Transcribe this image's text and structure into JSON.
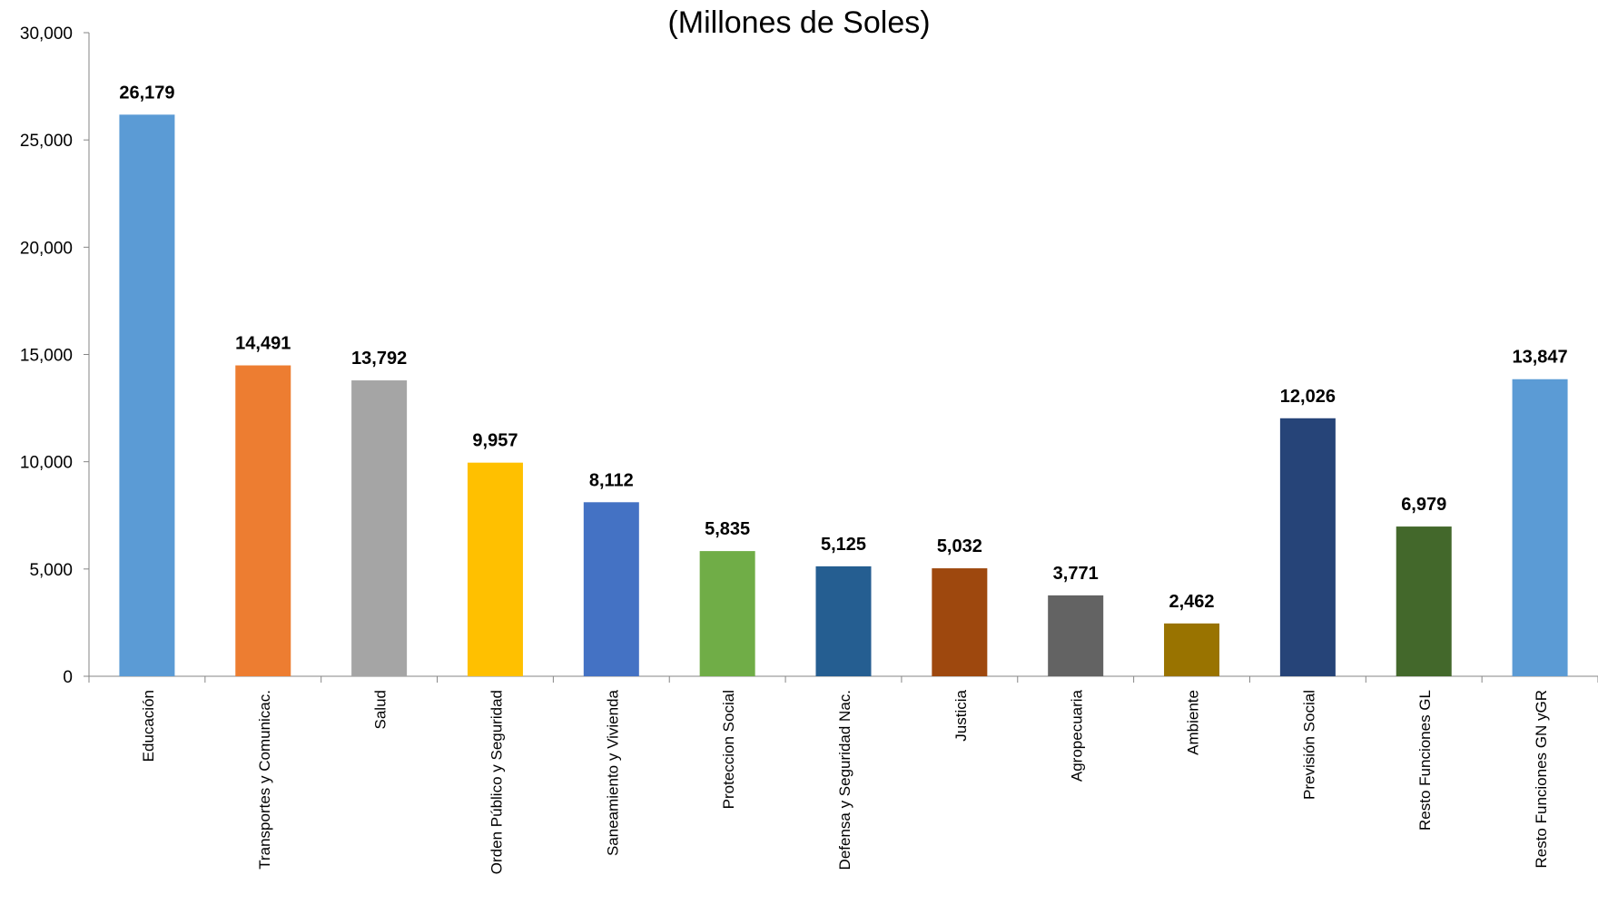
{
  "chart_data": {
    "type": "bar",
    "title": "(Millones de Soles)",
    "xlabel": "",
    "ylabel": "",
    "ylim": [
      0,
      30000
    ],
    "yticks": [
      0,
      5000,
      10000,
      15000,
      20000,
      25000,
      30000
    ],
    "ytick_labels": [
      "0",
      "5,000",
      "10,000",
      "15,000",
      "20,000",
      "25,000",
      "30,000"
    ],
    "grid": false,
    "legend": "none",
    "categories": [
      "Educación",
      "Transportes y Comunicac.",
      "Salud",
      "Orden Público y Seguridad",
      "Saneamiento y Vivienda",
      "Proteccion Social",
      "Defensa y Seguridad Nac.",
      "Justicia",
      "Agropecuaria",
      "Ambiente",
      "Previsión Social",
      "Resto Funciones GL",
      "Resto Funciones GN yGR"
    ],
    "values": [
      26179,
      14491,
      13792,
      9957,
      8112,
      5835,
      5125,
      5032,
      3771,
      2462,
      12026,
      6979,
      13847
    ],
    "value_labels": [
      "26,179",
      "14,491",
      "13,792",
      "9,957",
      "8,112",
      "5,835",
      "5,125",
      "5,032",
      "3,771",
      "2,462",
      "12,026",
      "6,979",
      "13,847"
    ],
    "colors": [
      "#5B9BD5",
      "#ED7D31",
      "#A5A5A5",
      "#FFC000",
      "#4472C4",
      "#70AD47",
      "#255E91",
      "#9E480E",
      "#636363",
      "#997300",
      "#264478",
      "#43682B",
      "#5B9BD5"
    ]
  }
}
